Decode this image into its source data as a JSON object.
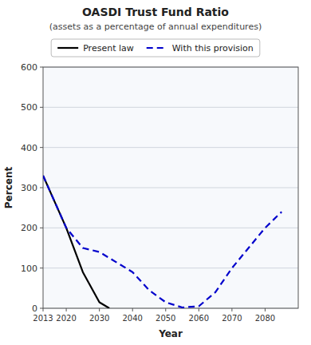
{
  "chart_data": {
    "type": "line",
    "title": "OASDI Trust Fund Ratio",
    "subtitle": "(assets as a percentage of annual expenditures)",
    "x_label": "Year",
    "y_label": "Percent",
    "xlim": [
      2013,
      2090
    ],
    "ylim": [
      0,
      600
    ],
    "xticks": [
      2013,
      2020,
      2030,
      2040,
      2050,
      2060,
      2070,
      2080
    ],
    "yticks": [
      0,
      100,
      200,
      300,
      400,
      500,
      600
    ],
    "grid": true,
    "legend": "top",
    "series": [
      {
        "name": "Present law",
        "color": "#000000",
        "line_style": "solid",
        "x": [
          2013,
          2020,
          2025,
          2030,
          2033
        ],
        "values": [
          330,
          200,
          90,
          15,
          0
        ]
      },
      {
        "name": "With this provision",
        "color": "#0000cc",
        "line_style": "dashed",
        "x": [
          2013,
          2020,
          2025,
          2030,
          2035,
          2040,
          2045,
          2050,
          2055,
          2060,
          2065,
          2070,
          2075,
          2080,
          2085
        ],
        "values": [
          330,
          200,
          150,
          140,
          115,
          90,
          45,
          15,
          2,
          5,
          40,
          100,
          150,
          200,
          240
        ]
      }
    ]
  }
}
